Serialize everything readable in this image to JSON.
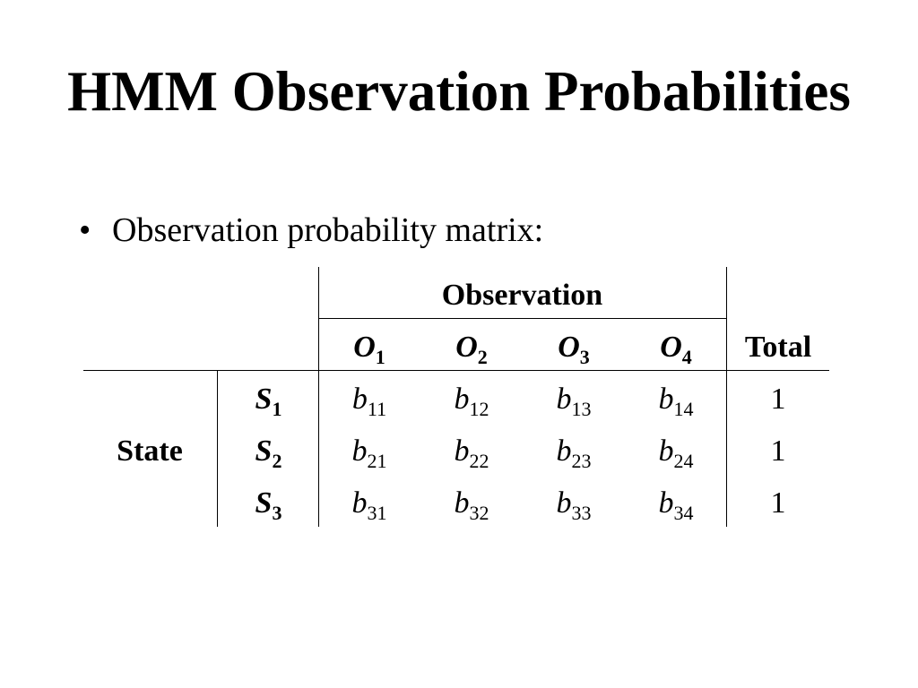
{
  "slide": {
    "title": "HMM Observation Probabilities",
    "bullet_marker": "•",
    "bullet_text": "Observation probability matrix:"
  },
  "table": {
    "group_header": "Observation",
    "total_header": "Total",
    "row_group_label": "State",
    "columns": [
      {
        "sym": "O",
        "sub": "1"
      },
      {
        "sym": "O",
        "sub": "2"
      },
      {
        "sym": "O",
        "sub": "3"
      },
      {
        "sym": "O",
        "sub": "4"
      }
    ],
    "rows": [
      {
        "state": {
          "sym": "S",
          "sub": "1"
        },
        "cells": [
          {
            "sym": "b",
            "sub": "11"
          },
          {
            "sym": "b",
            "sub": "12"
          },
          {
            "sym": "b",
            "sub": "13"
          },
          {
            "sym": "b",
            "sub": "14"
          }
        ],
        "total": "1"
      },
      {
        "state": {
          "sym": "S",
          "sub": "2"
        },
        "cells": [
          {
            "sym": "b",
            "sub": "21"
          },
          {
            "sym": "b",
            "sub": "22"
          },
          {
            "sym": "b",
            "sub": "23"
          },
          {
            "sym": "b",
            "sub": "24"
          }
        ],
        "total": "1"
      },
      {
        "state": {
          "sym": "S",
          "sub": "3"
        },
        "cells": [
          {
            "sym": "b",
            "sub": "31"
          },
          {
            "sym": "b",
            "sub": "32"
          },
          {
            "sym": "b",
            "sub": "33"
          },
          {
            "sym": "b",
            "sub": "34"
          }
        ],
        "total": "1"
      }
    ]
  }
}
